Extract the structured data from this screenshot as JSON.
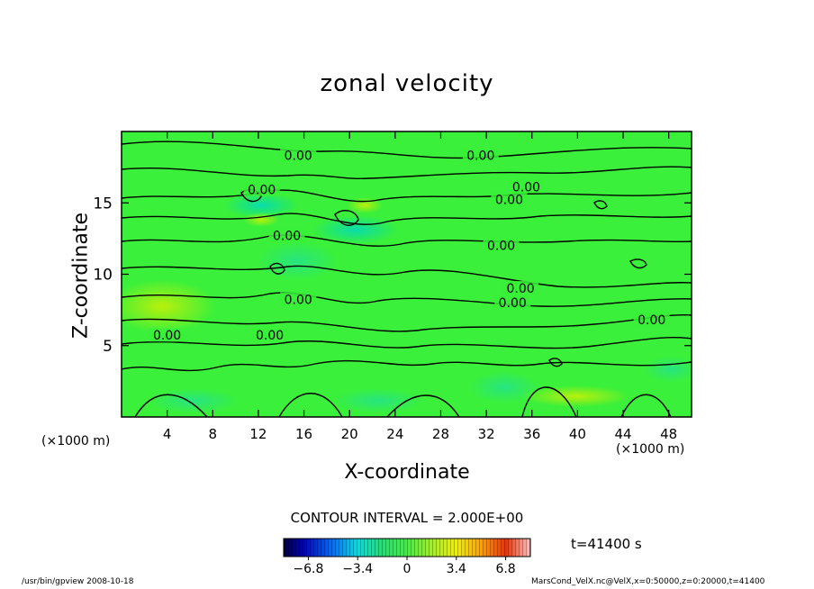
{
  "chart_data": {
    "type": "heatmap",
    "title": "zonal velocity",
    "xlabel": "X-coordinate",
    "ylabel": "Z-coordinate",
    "x_unit": "(×1000 m)",
    "z_unit": "(×1000 m)",
    "xlim": [
      0,
      50
    ],
    "ylim": [
      0,
      20
    ],
    "x_ticks": [
      4,
      8,
      12,
      16,
      20,
      24,
      28,
      32,
      36,
      40,
      44,
      48
    ],
    "y_ticks": [
      5,
      10,
      15
    ],
    "contour_labels": [
      {
        "x": 15.5,
        "z": 18.2,
        "text": "0.00"
      },
      {
        "x": 12.3,
        "z": 15.8,
        "text": "0.00"
      },
      {
        "x": 14.5,
        "z": 12.6,
        "text": "0.00"
      },
      {
        "x": 15.5,
        "z": 8.1,
        "text": "0.00"
      },
      {
        "x": 4.0,
        "z": 5.6,
        "text": "0.00"
      },
      {
        "x": 13.0,
        "z": 5.6,
        "text": "0.00"
      },
      {
        "x": 31.5,
        "z": 18.2,
        "text": "0.00"
      },
      {
        "x": 35.5,
        "z": 16.0,
        "text": "0.00"
      },
      {
        "x": 34.0,
        "z": 15.1,
        "text": "0.00"
      },
      {
        "x": 33.3,
        "z": 11.9,
        "text": "0.00"
      },
      {
        "x": 35.0,
        "z": 8.9,
        "text": "0.00"
      },
      {
        "x": 34.3,
        "z": 7.9,
        "text": "0.00"
      },
      {
        "x": 46.5,
        "z": 6.7,
        "text": "0.00"
      }
    ],
    "contour_interval": "CONTOUR INTERVAL = 2.000E+00",
    "colorbar": {
      "range": [
        -8.5,
        8.5
      ],
      "ticks": [
        -6.8,
        -3.4,
        0,
        3.4,
        6.8
      ],
      "tick_labels": [
        "−6.8",
        "−3.4",
        "0",
        "3.4",
        "6.8"
      ]
    },
    "time_label": "t=41400 s"
  },
  "footer": {
    "left": "/usr/bin/gpview   2008-10-18",
    "right": "MarsCond_VelX.nc@VelX,x=0:50000,z=0:20000,t=41400"
  },
  "colors": {
    "field_background": "#3af03a",
    "contour": "#000000"
  }
}
